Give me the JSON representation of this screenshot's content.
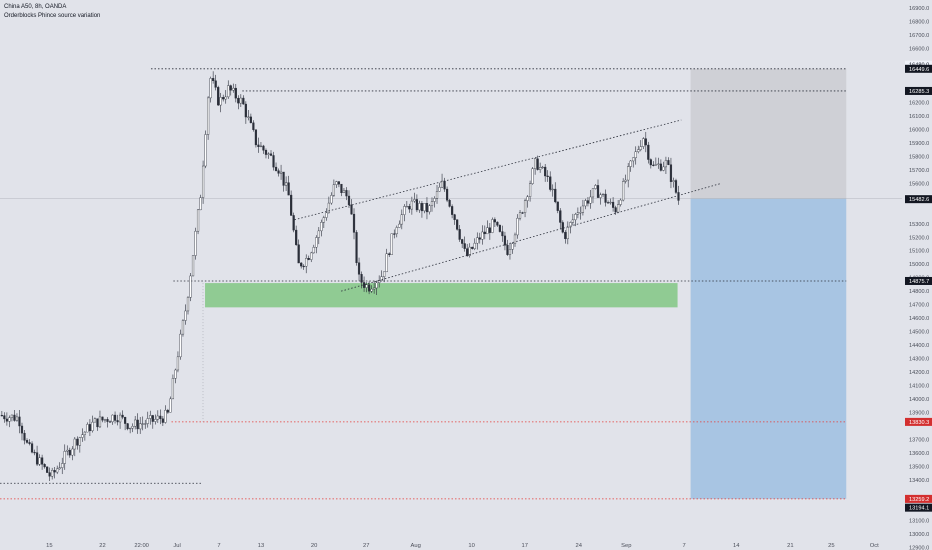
{
  "header": {
    "title": "China A50, 8h, OANDA",
    "subtitle": "Orderblocks Phince source variation"
  },
  "colors": {
    "background": "#e1e3ea",
    "candle_body": "#ffffff",
    "candle_outline": "#2a2e39",
    "demand_zone": "#81c784",
    "target_zone": "#90b8e0",
    "stop_zone": "#c8c9cf",
    "level_line": "#2a2e39",
    "sl_line": "#e53935",
    "tag_price": "#000000",
    "tag_red": "#d32f2f"
  },
  "chart_data": {
    "type": "candlestick",
    "symbol": "China A50",
    "timeframe": "8h",
    "source": "OANDA",
    "x_ticks": [
      "15",
      "22",
      "22:00",
      "Jul",
      "7",
      "13",
      "20",
      "27",
      "Aug",
      "10",
      "17",
      "24",
      "Sep",
      "7",
      "14",
      "21",
      "25",
      "Oct"
    ],
    "y_ticks": [
      "16900.0",
      "16800.0",
      "16700.0",
      "16600.0",
      "16200.0",
      "16100.0",
      "16000.0",
      "15900.0",
      "15800.0",
      "15700.0",
      "15600.0",
      "15300.0",
      "15200.0",
      "15100.0",
      "15000.0",
      "14900.0",
      "14800.0",
      "14700.0",
      "14600.0",
      "14500.0",
      "14400.0",
      "14300.0",
      "14200.0",
      "14100.0",
      "14000.0",
      "13900.0",
      "13700.0",
      "13600.0",
      "13500.0",
      "13400.0",
      "13100.0",
      "13000.0",
      "12900.0"
    ],
    "ylim": [
      12880,
      16960
    ],
    "price_tags": [
      {
        "label": "16480.0",
        "value": 16480,
        "style": "light"
      },
      {
        "label": "16449.6",
        "value": 16449.6,
        "style": "dark"
      },
      {
        "label": "16285.3",
        "value": 16285.3,
        "style": "dark"
      },
      {
        "label": "15486.5",
        "value": 15486.5,
        "style": "light"
      },
      {
        "label": "15482.6",
        "value": 15482.6,
        "style": "dark"
      },
      {
        "label": "14875.7",
        "value": 14875.7,
        "style": "dark"
      },
      {
        "label": "13830.3",
        "value": 13830.3,
        "style": "red"
      },
      {
        "label": "13259.2",
        "value": 13259.2,
        "style": "red"
      },
      {
        "label": "13194.1",
        "value": 13194.1,
        "style": "dark"
      }
    ],
    "levels": [
      {
        "value": 16449.6,
        "x_from": 0.162,
        "x_to": 0.908,
        "color": "dark"
      },
      {
        "value": 16285.3,
        "x_from": 0.26,
        "x_to": 0.908,
        "color": "dark"
      },
      {
        "value": 14875.7,
        "x_from": 0.186,
        "x_to": 0.908,
        "color": "dark"
      },
      {
        "value": 13830.3,
        "x_from": 0.184,
        "x_to": 0.908,
        "color": "red"
      },
      {
        "value": 13259.2,
        "x_from": 0.0,
        "x_to": 0.908,
        "color": "red"
      },
      {
        "value": 13375,
        "x_from": 0.0,
        "x_to": 0.216,
        "color": "dark"
      }
    ],
    "zones": [
      {
        "kind": "demand",
        "top": 14860,
        "bottom": 14680,
        "x_from": 0.22,
        "x_to": 0.727
      },
      {
        "kind": "stop",
        "top": 16449.6,
        "bottom": 15486.5,
        "x_from": 0.741,
        "x_to": 0.908
      },
      {
        "kind": "target",
        "top": 15486.5,
        "bottom": 13259.2,
        "x_from": 0.741,
        "x_to": 0.908
      }
    ],
    "channel": {
      "upper": {
        "x1": 0.316,
        "y1": 15330,
        "x2": 0.731,
        "y2": 16070
      },
      "lower": {
        "x1": 0.366,
        "y1": 14800,
        "x2": 0.774,
        "y2": 15600
      }
    },
    "path": [
      [
        0.0,
        13880
      ],
      [
        0.02,
        13860
      ],
      [
        0.03,
        13640
      ],
      [
        0.055,
        13420
      ],
      [
        0.08,
        13680
      ],
      [
        0.1,
        13820
      ],
      [
        0.125,
        13880
      ],
      [
        0.14,
        13800
      ],
      [
        0.165,
        13840
      ],
      [
        0.18,
        13880
      ],
      [
        0.19,
        14300
      ],
      [
        0.2,
        14700
      ],
      [
        0.215,
        15500
      ],
      [
        0.225,
        16400
      ],
      [
        0.235,
        16200
      ],
      [
        0.245,
        16300
      ],
      [
        0.26,
        16200
      ],
      [
        0.275,
        15900
      ],
      [
        0.29,
        15800
      ],
      [
        0.3,
        15700
      ],
      [
        0.31,
        15500
      ],
      [
        0.32,
        14990
      ],
      [
        0.33,
        15050
      ],
      [
        0.345,
        15300
      ],
      [
        0.36,
        15600
      ],
      [
        0.375,
        15480
      ],
      [
        0.385,
        14890
      ],
      [
        0.395,
        14830
      ],
      [
        0.41,
        14920
      ],
      [
        0.425,
        15300
      ],
      [
        0.44,
        15450
      ],
      [
        0.46,
        15400
      ],
      [
        0.475,
        15600
      ],
      [
        0.49,
        15300
      ],
      [
        0.5,
        15050
      ],
      [
        0.515,
        15200
      ],
      [
        0.53,
        15300
      ],
      [
        0.545,
        15100
      ],
      [
        0.56,
        15400
      ],
      [
        0.575,
        15760
      ],
      [
        0.59,
        15600
      ],
      [
        0.605,
        15200
      ],
      [
        0.62,
        15400
      ],
      [
        0.64,
        15550
      ],
      [
        0.66,
        15400
      ],
      [
        0.675,
        15700
      ],
      [
        0.69,
        15950
      ],
      [
        0.7,
        15720
      ],
      [
        0.715,
        15750
      ],
      [
        0.728,
        15480
      ]
    ]
  }
}
